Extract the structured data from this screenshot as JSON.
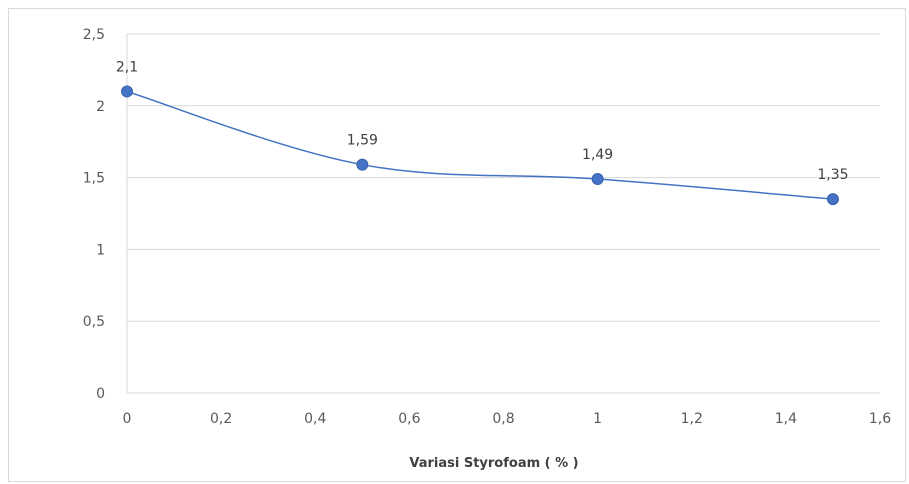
{
  "chart_data": {
    "type": "scatter",
    "title": "",
    "xlabel": "Variasi Styrofoam ( % )",
    "ylabel": "",
    "xlim": [
      0,
      1.6
    ],
    "ylim": [
      0,
      2.5
    ],
    "x_ticks": [
      0,
      0.2,
      0.4,
      0.6,
      0.8,
      1,
      1.2,
      1.4,
      1.6
    ],
    "x_tick_labels": [
      "0",
      "0,2",
      "0,4",
      "0,6",
      "0,8",
      "1",
      "1,2",
      "1,4",
      "1,6"
    ],
    "y_ticks": [
      0,
      0.5,
      1,
      1.5,
      2,
      2.5
    ],
    "y_tick_labels": [
      "0",
      "0,5",
      "1",
      "1,5",
      "2",
      "2,5"
    ],
    "grid": "horizontal",
    "legend": "none",
    "line_style": "smooth",
    "series": [
      {
        "x": [
          0,
          0.5,
          1,
          1.5
        ],
        "y": [
          2.1,
          1.59,
          1.49,
          1.35
        ],
        "data_labels": [
          "2,1",
          "1,59",
          "1,49",
          "1,35"
        ],
        "color": "#4472C4"
      }
    ],
    "colors": {
      "series": "#4472C4",
      "grid": "#d9d9d9",
      "text": "#595959"
    }
  }
}
